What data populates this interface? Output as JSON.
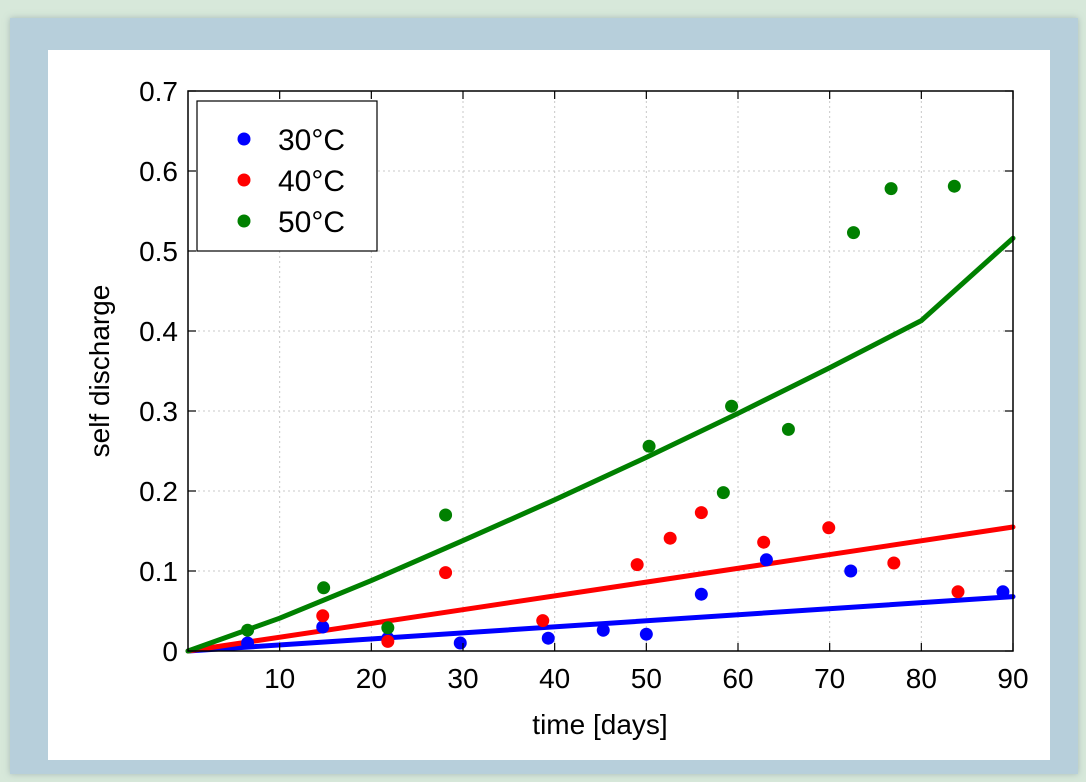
{
  "chart_data": {
    "type": "scatter",
    "xlabel": "time [days]",
    "ylabel": "self discharge",
    "xlim": [
      0,
      90
    ],
    "ylim": [
      0,
      0.7
    ],
    "x_ticks": [
      10,
      20,
      30,
      40,
      50,
      60,
      70,
      80,
      90
    ],
    "y_ticks": [
      0,
      0.1,
      0.2,
      0.3,
      0.4,
      0.5,
      0.6,
      0.7
    ],
    "x_tick_labels": [
      "10",
      "20",
      "30",
      "40",
      "50",
      "60",
      "70",
      "80",
      "90"
    ],
    "y_tick_labels": [
      "0",
      "0.1",
      "0.2",
      "0.3",
      "0.4",
      "0.5",
      "0.6",
      "0.7"
    ],
    "grid": true,
    "legend_position": "top-left",
    "series": [
      {
        "name": "30°C",
        "color": "#0000ff",
        "points": [
          [
            6.5,
            0.01
          ],
          [
            14.7,
            0.03
          ],
          [
            21.8,
            0.016
          ],
          [
            29.7,
            0.01
          ],
          [
            39.3,
            0.016
          ],
          [
            45.3,
            0.026
          ],
          [
            50,
            0.021
          ],
          [
            56,
            0.071
          ],
          [
            63.1,
            0.114
          ],
          [
            72.3,
            0.1
          ],
          [
            88.9,
            0.074
          ]
        ],
        "fit": [
          [
            0,
            0
          ],
          [
            90,
            0.068
          ]
        ]
      },
      {
        "name": "40°C",
        "color": "#ff0000",
        "points": [
          [
            14.7,
            0.044
          ],
          [
            21.8,
            0.012
          ],
          [
            28.1,
            0.098
          ],
          [
            38.7,
            0.038
          ],
          [
            49,
            0.108
          ],
          [
            52.6,
            0.141
          ],
          [
            56,
            0.173
          ],
          [
            62.8,
            0.136
          ],
          [
            69.9,
            0.154
          ],
          [
            77,
            0.11
          ],
          [
            84,
            0.074
          ]
        ],
        "fit": [
          [
            0,
            0
          ],
          [
            90,
            0.155
          ]
        ]
      },
      {
        "name": "50°C",
        "color": "#008000",
        "points": [
          [
            6.5,
            0.026
          ],
          [
            14.8,
            0.079
          ],
          [
            21.8,
            0.029
          ],
          [
            28.1,
            0.17
          ],
          [
            50.3,
            0.256
          ],
          [
            58.4,
            0.198
          ],
          [
            59.3,
            0.306
          ],
          [
            65.5,
            0.277
          ],
          [
            72.6,
            0.523
          ],
          [
            76.7,
            0.578
          ],
          [
            83.6,
            0.581
          ]
        ],
        "fit": [
          [
            0,
            0
          ],
          [
            10,
            0.041
          ],
          [
            20,
            0.088
          ],
          [
            30,
            0.138
          ],
          [
            40,
            0.189
          ],
          [
            50,
            0.242
          ],
          [
            60,
            0.297
          ],
          [
            70,
            0.354
          ],
          [
            80,
            0.413
          ],
          [
            90,
            0.516
          ]
        ]
      }
    ]
  }
}
